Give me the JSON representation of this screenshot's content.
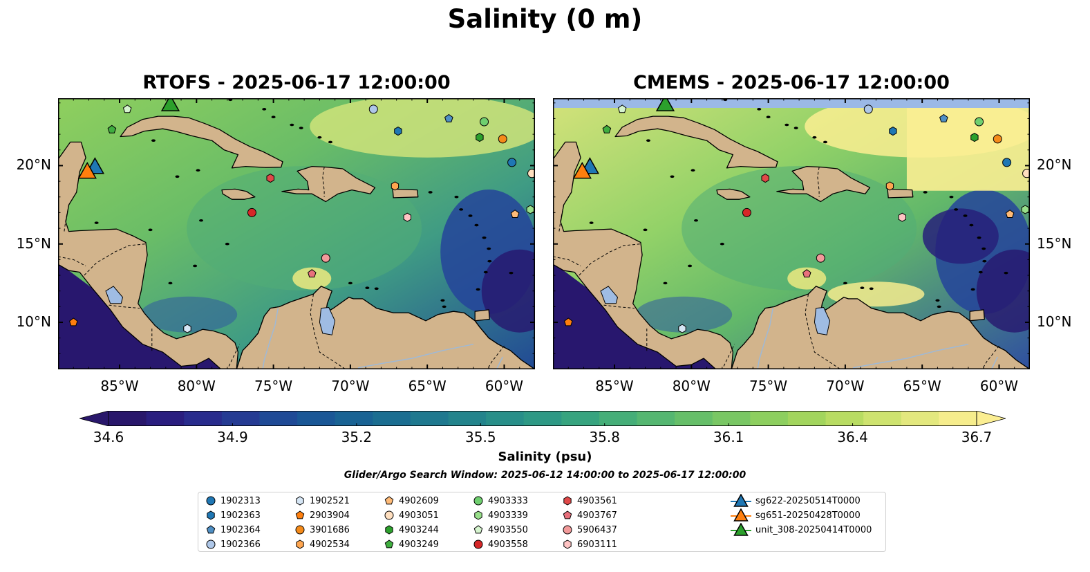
{
  "figure": {
    "suptitle": "Salinity (0 m)",
    "panels": [
      {
        "title": "RTOFS - 2025-06-17 12:00:00"
      },
      {
        "title": "CMEMS - 2025-06-17 12:00:00"
      }
    ],
    "search_window": "Glider/Argo Search Window: 2025-06-12 14:00:00 to 2025-06-17 12:00:00"
  },
  "colors": {
    "land": "#d2b48c",
    "lake": "#9fbce3",
    "ocean_low": "#28176e",
    "ocean_high": "#fcee92",
    "cmems_nodata": "#9bb9e6"
  },
  "chart_data": {
    "type": "map",
    "xlim": [
      -89,
      -58
    ],
    "ylim": [
      7,
      24.3
    ],
    "xticks": [
      -85,
      -80,
      -75,
      -70,
      -65,
      -60
    ],
    "xtick_labels": [
      "85°W",
      "80°W",
      "75°W",
      "70°W",
      "65°W",
      "60°W"
    ],
    "yticks": [
      10,
      15,
      20
    ],
    "ytick_labels": [
      "10°N",
      "15°N",
      "20°N"
    ],
    "colorbar": {
      "label": "Salinity (psu)",
      "min": 34.6,
      "max": 36.7,
      "ticks": [
        34.6,
        34.9,
        35.2,
        35.5,
        35.8,
        36.1,
        36.4,
        36.7
      ],
      "tick_labels": [
        "34.6",
        "34.9",
        "35.2",
        "35.5",
        "35.8",
        "36.1",
        "36.4",
        "36.7"
      ],
      "extend": "both"
    },
    "observations": [
      {
        "id": "1902313",
        "marker": "circle",
        "color": "#1f77b4",
        "lon": -59.5,
        "lat": 20.2
      },
      {
        "id": "1902363",
        "marker": "hexagon",
        "color": "#1f77b4",
        "lon": -66.9,
        "lat": 22.2
      },
      {
        "id": "1902364",
        "marker": "pentagon",
        "color": "#4f8fc4",
        "lon": -63.6,
        "lat": 23.0
      },
      {
        "id": "1902366",
        "marker": "circle",
        "color": "#aec7e8",
        "lon": -68.5,
        "lat": 23.6
      },
      {
        "id": "1902521",
        "marker": "hexagon",
        "color": "#d6e6f5",
        "lon": -80.6,
        "lat": 9.6
      },
      {
        "id": "2903904",
        "marker": "pentagon",
        "color": "#ff7f0e",
        "lon": -88.0,
        "lat": 10.0
      },
      {
        "id": "3901686",
        "marker": "circle",
        "color": "#f58b1a",
        "lon": -60.1,
        "lat": 21.7
      },
      {
        "id": "4902534",
        "marker": "hexagon",
        "color": "#ffa650",
        "lon": -67.1,
        "lat": 18.7
      },
      {
        "id": "4902609",
        "marker": "pentagon",
        "color": "#ffbb78",
        "lon": -59.3,
        "lat": 16.9
      },
      {
        "id": "4903051",
        "marker": "circle",
        "color": "#ffdfbf",
        "lon": -58.2,
        "lat": 19.5
      },
      {
        "id": "4903244",
        "marker": "hexagon",
        "color": "#2ca02c",
        "lon": -61.6,
        "lat": 21.8
      },
      {
        "id": "4903249",
        "marker": "pentagon",
        "color": "#3fae3f",
        "lon": -85.5,
        "lat": 22.3
      },
      {
        "id": "4903333",
        "marker": "circle",
        "color": "#6fcf6f",
        "lon": -61.3,
        "lat": 22.8
      },
      {
        "id": "4903339",
        "marker": "hexagon",
        "color": "#98df8a",
        "lon": -58.3,
        "lat": 17.2
      },
      {
        "id": "4903550",
        "marker": "pentagon",
        "color": "#d6f5cf",
        "lon": -84.5,
        "lat": 23.6
      },
      {
        "id": "4903558",
        "marker": "circle",
        "color": "#d62728",
        "lon": -76.4,
        "lat": 17.0
      },
      {
        "id": "4903561",
        "marker": "hexagon",
        "color": "#e04848",
        "lon": -75.2,
        "lat": 19.2
      },
      {
        "id": "4903767",
        "marker": "pentagon",
        "color": "#e8707c",
        "lon": -72.5,
        "lat": 13.1
      },
      {
        "id": "5906437",
        "marker": "circle",
        "color": "#f29a9a",
        "lon": -71.6,
        "lat": 14.1
      },
      {
        "id": "6903111",
        "marker": "hexagon",
        "color": "#ffc4c4",
        "lon": -66.3,
        "lat": 16.7
      },
      {
        "id": "sg622-20250514T0000",
        "marker": "triangle",
        "color": "#1f77b4",
        "lon": -86.6,
        "lat": 19.9
      },
      {
        "id": "sg651-20250428T0000",
        "marker": "triangle",
        "color": "#ff7f0e",
        "lon": -87.1,
        "lat": 19.6
      },
      {
        "id": "unit_308-20250414T0000",
        "marker": "triangle",
        "color": "#2ca02c",
        "lon": -81.7,
        "lat": 23.9
      }
    ]
  }
}
